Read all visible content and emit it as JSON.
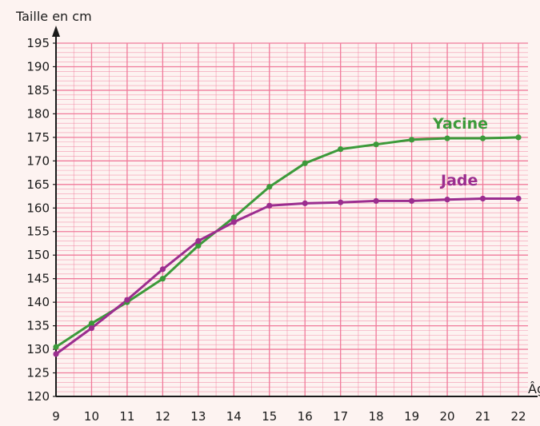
{
  "chart_data": {
    "type": "line",
    "ylabel": "Taille en cm",
    "xlabel": "Âge",
    "x": [
      9,
      10,
      11,
      12,
      13,
      14,
      15,
      16,
      17,
      18,
      19,
      20,
      21,
      22
    ],
    "xlim": [
      9,
      22
    ],
    "ylim": [
      120,
      195
    ],
    "y_ticks": [
      120,
      125,
      130,
      135,
      140,
      145,
      150,
      155,
      160,
      165,
      170,
      175,
      180,
      185,
      190,
      195
    ],
    "grid": true,
    "series": [
      {
        "name": "Yacine",
        "color": "#3c9a3a",
        "values": [
          130.5,
          135.5,
          140,
          145,
          152,
          158,
          164.5,
          169.5,
          172.5,
          173.5,
          174.5,
          174.8,
          174.8,
          175
        ]
      },
      {
        "name": "Jade",
        "color": "#9b2d8f",
        "values": [
          129,
          134.5,
          140.5,
          147,
          153,
          157,
          160.5,
          161,
          161.2,
          161.5,
          161.5,
          161.8,
          162,
          162
        ]
      }
    ]
  },
  "colors": {
    "background": "#fdf3f1",
    "grid": "#f07a9a",
    "axis": "#1a1a1a"
  }
}
